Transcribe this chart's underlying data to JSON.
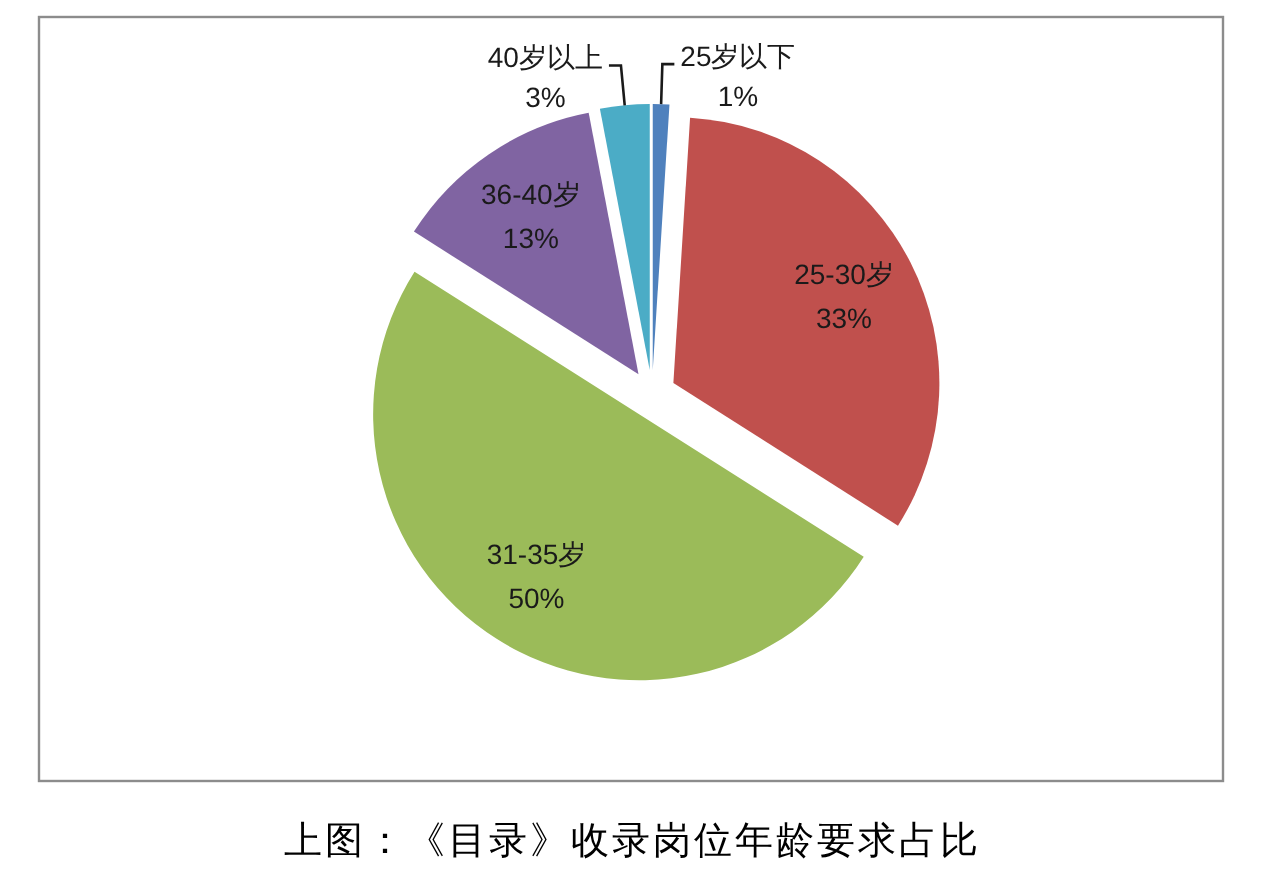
{
  "chart_data": {
    "type": "pie",
    "categories": [
      "25岁以下",
      "25-30岁",
      "31-35岁",
      "36-40岁",
      "40岁以上"
    ],
    "values": [
      1,
      33,
      50,
      13,
      3
    ],
    "colors": [
      "#4f81bd",
      "#c0504d",
      "#9bbb59",
      "#8064a2",
      "#4bacc6"
    ],
    "value_labels": [
      "1%",
      "33%",
      "50%",
      "13%",
      "3%"
    ],
    "annotations": [
      "上图：《目录》收录岗位年龄要求占比"
    ]
  }
}
